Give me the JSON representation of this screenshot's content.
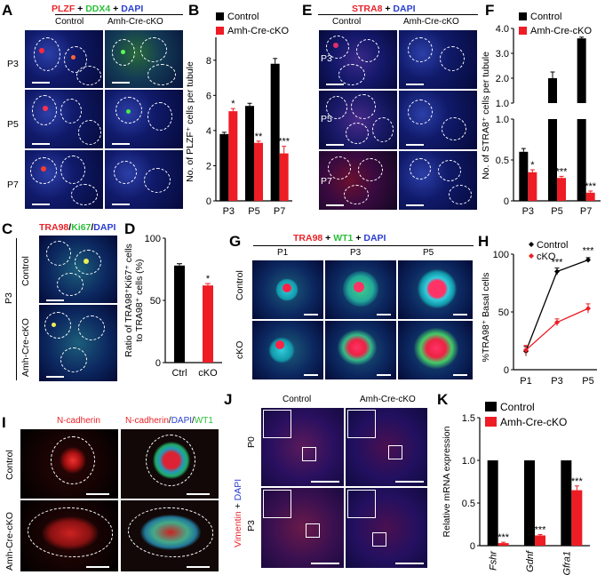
{
  "panels": {
    "A": "A",
    "B": "B",
    "C": "C",
    "D": "D",
    "E": "E",
    "F": "F",
    "G": "G",
    "H": "H",
    "I": "I",
    "J": "J",
    "K": "K"
  },
  "colors": {
    "red": "#e8242a",
    "green": "#2bbf3a",
    "blue": "#2a3fd1",
    "black": "#000000"
  },
  "A": {
    "t_plzf": "PLZF",
    "t_plus1": " + ",
    "t_ddx4": "DDX4",
    "t_plus2": " + ",
    "t_dapi": "DAPI",
    "col1": "Control",
    "col2": "Amh-Cre-cKO",
    "rows": [
      "P3",
      "P5",
      "P7"
    ]
  },
  "E": {
    "t_stra8": "STRA8",
    "t_plus": " + ",
    "t_dapi": "DAPI",
    "col1": "Control",
    "col2": "Amh-Cre-cKO",
    "rows": [
      "P3",
      "P5",
      "P7"
    ]
  },
  "C": {
    "t_tra98": "TRA98",
    "t_s1": "/",
    "t_ki67": "Ki67",
    "t_s2": "/",
    "t_dapi": "DAPI",
    "row1": "Control",
    "row2": "Amh-Cre-cKO",
    "side": "P3"
  },
  "G": {
    "t_tra98": "TRA98",
    "t_p1": " + ",
    "t_wt1": "WT1",
    "t_p2": " + ",
    "t_dapi": "DAPI",
    "cols": [
      "P1",
      "P3",
      "P5"
    ],
    "rows": [
      "Control",
      "cKO"
    ]
  },
  "I": {
    "t1": "N-cadherin",
    "t2a": "N-cadherin",
    "t2b": "/",
    "t2c": "DAPI",
    "t2d": "/",
    "t2e": "WT1",
    "rows": [
      "Control",
      "Amh-Cre-cKO"
    ]
  },
  "J": {
    "col1": "Control",
    "col2": "Amh-Cre-cKO",
    "rows": [
      "P0",
      "P3"
    ],
    "side_vim": "Vimentin",
    "side_plus": " + ",
    "side_dapi": "DAPI"
  },
  "chart_data": [
    {
      "id": "B",
      "type": "bar",
      "ylabel": "No. of PLZF⁺ cells per tubule",
      "categories": [
        "P3",
        "P5",
        "P7"
      ],
      "ylim": [
        0,
        9
      ],
      "yticks": [
        0,
        2,
        4,
        6,
        8
      ],
      "series": [
        {
          "name": "Control",
          "color": "#000000",
          "values": [
            3.8,
            5.4,
            7.8
          ],
          "err": [
            0.1,
            0.15,
            0.3
          ]
        },
        {
          "name": "Amh-Cre-cKO",
          "color": "#ee1c24",
          "values": [
            5.1,
            3.3,
            2.7
          ],
          "err": [
            0.15,
            0.1,
            0.4
          ]
        }
      ],
      "sig": [
        "*",
        "**",
        "***"
      ],
      "legend": [
        "Control",
        "Amh-Cre-cKO"
      ]
    },
    {
      "id": "F",
      "type": "bar",
      "ylabel": "No. of STRA8⁺ cells per tubule",
      "categories": [
        "P3",
        "P5",
        "P7"
      ],
      "ylim_lower": [
        0,
        1.0
      ],
      "ylim_upper": [
        1.0,
        4.0
      ],
      "yticks_lower": [
        "0",
        "0.5",
        "1.0"
      ],
      "yticks_upper": [
        "1.0",
        "2.0",
        "3.0",
        "4.0"
      ],
      "series": [
        {
          "name": "Control",
          "color": "#000000",
          "values": [
            0.6,
            2.0,
            3.6
          ],
          "err": [
            0.04,
            0.25,
            0.05
          ]
        },
        {
          "name": "Amh-Cre-cKO",
          "color": "#ee1c24",
          "values": [
            0.35,
            0.28,
            0.1
          ],
          "err": [
            0.03,
            0.02,
            0.02
          ]
        }
      ],
      "sig": [
        "*",
        "***",
        "***"
      ],
      "legend": [
        "Control",
        "Amh-Cre-cKO"
      ]
    },
    {
      "id": "D",
      "type": "bar",
      "ylabel1": "Ratio of TRA98⁺Ki67⁺ cells",
      "ylabel2": "to TRA98⁺ cells (%)",
      "categories": [
        "Ctrl",
        "cKO"
      ],
      "ylim": [
        0,
        100
      ],
      "yticks": [
        0,
        50,
        100
      ],
      "values": [
        78,
        62
      ],
      "err": [
        1.5,
        1.5
      ],
      "colors": [
        "#000000",
        "#ee1c24"
      ],
      "sig": [
        "",
        "*"
      ]
    },
    {
      "id": "H",
      "type": "line",
      "ylabel": "%TRA98⁺ Basal cells",
      "x": [
        "P1",
        "P3",
        "P5"
      ],
      "ylim": [
        0,
        100
      ],
      "yticks": [
        0,
        50,
        100
      ],
      "series": [
        {
          "name": "Control",
          "color": "#000000",
          "values": [
            16,
            85,
            95
          ],
          "err": [
            4,
            3,
            2
          ]
        },
        {
          "name": "cKO",
          "color": "#ee1c24",
          "values": [
            17,
            41,
            53
          ],
          "err": [
            4,
            3,
            4
          ]
        }
      ],
      "sig": [
        "",
        "***",
        "***"
      ],
      "legend": [
        "Control",
        "cKO"
      ]
    },
    {
      "id": "K",
      "type": "bar",
      "ylabel": "Relative mRNA expression",
      "categories": [
        "Fshr",
        "Gdnf",
        "Gfra1"
      ],
      "ylim": [
        0,
        1.5
      ],
      "yticks": [
        "0",
        "0.5",
        "1.0",
        "1.5"
      ],
      "series": [
        {
          "name": "Control",
          "color": "#000000",
          "values": [
            1.0,
            1.0,
            1.0
          ],
          "err": [
            0,
            0,
            0
          ]
        },
        {
          "name": "Amh-Cre-cKO",
          "color": "#ee1c24",
          "values": [
            0.03,
            0.12,
            0.65
          ],
          "err": [
            0.01,
            0.01,
            0.05
          ]
        }
      ],
      "sig": [
        "***",
        "***",
        "***"
      ],
      "legend": [
        "Control",
        "Amh-Cre-cKO"
      ]
    }
  ]
}
